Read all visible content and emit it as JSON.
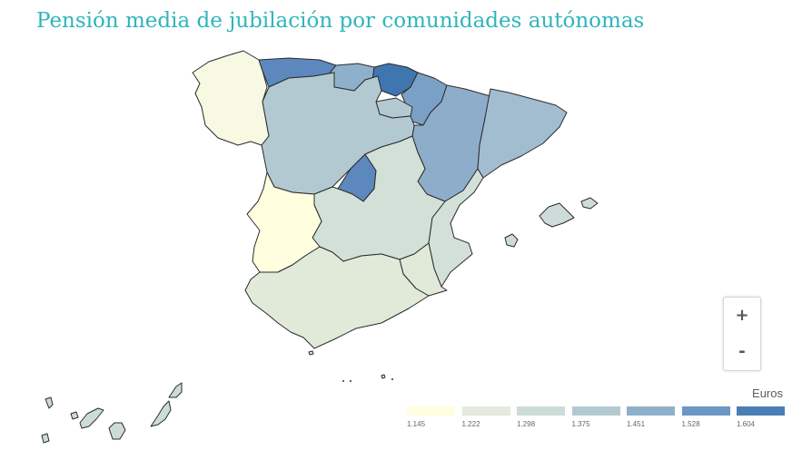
{
  "title": "Pensión media de jubilación por comunidades autónomas",
  "zoom": {
    "in_label": "+",
    "out_label": "-"
  },
  "legend": {
    "title": "Euros",
    "bins": [
      {
        "label": "1.145",
        "color": "#ffffe0"
      },
      {
        "label": "1.222",
        "color": "#e4eadc"
      },
      {
        "label": "1.298",
        "color": "#cddcd9"
      },
      {
        "label": "1.375",
        "color": "#b3c9d2"
      },
      {
        "label": "1.451",
        "color": "#8fb0ca"
      },
      {
        "label": "1.528",
        "color": "#6a97c4"
      },
      {
        "label": "1.604",
        "color": "#4a7fb6"
      }
    ]
  },
  "regions": [
    {
      "name": "Galicia",
      "color": "#f7f9e2"
    },
    {
      "name": "Asturias",
      "color": "#5d88bd"
    },
    {
      "name": "Cantabria",
      "color": "#8fb0ca"
    },
    {
      "name": "País Vasco",
      "color": "#3f76b0"
    },
    {
      "name": "Navarra",
      "color": "#7aa0c6"
    },
    {
      "name": "La Rioja",
      "color": "#b3c9d2"
    },
    {
      "name": "Aragón",
      "color": "#8eadca"
    },
    {
      "name": "Cataluña",
      "color": "#a2bdd0"
    },
    {
      "name": "Castilla y León",
      "color": "#b3c9d2"
    },
    {
      "name": "Madrid",
      "color": "#5d88bd"
    },
    {
      "name": "Castilla-La Mancha",
      "color": "#d3e0d8"
    },
    {
      "name": "Comunitat Valenciana",
      "color": "#d3e0d8"
    },
    {
      "name": "Extremadura",
      "color": "#ffffe0"
    },
    {
      "name": "Andalucía",
      "color": "#e1e9d9"
    },
    {
      "name": "Región de Murcia",
      "color": "#e1e9d9"
    },
    {
      "name": "Illes Balears",
      "color": "#cddcd9"
    },
    {
      "name": "Canarias",
      "color": "#cddcd9"
    },
    {
      "name": "Ceuta",
      "color": "#e1e9d9"
    },
    {
      "name": "Melilla",
      "color": "#e1e9d9"
    }
  ]
}
